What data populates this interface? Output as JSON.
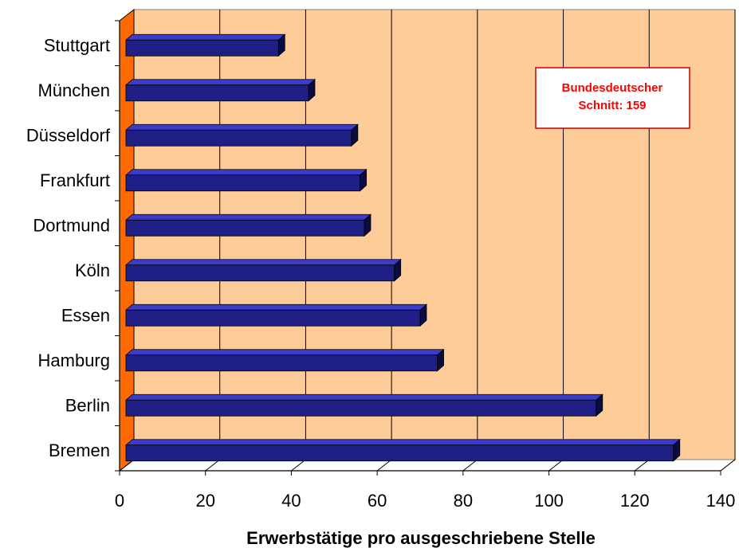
{
  "chart_data": {
    "type": "bar",
    "orientation": "horizontal",
    "categories": [
      "Bremen",
      "Berlin",
      "Hamburg",
      "Essen",
      "Köln",
      "Dortmund",
      "Frankfurt",
      "Düsseldorf",
      "München",
      "Stuttgart"
    ],
    "values": [
      129,
      111,
      74,
      70,
      64,
      57,
      56,
      54,
      44,
      37
    ],
    "xlabel": "Erwerbstätige pro ausgeschriebene Stelle",
    "ylabel": "",
    "xlim": [
      0,
      140
    ],
    "xticks": [
      "0",
      "20",
      "40",
      "60",
      "80",
      "100",
      "120",
      "140"
    ],
    "grid": true,
    "annotation": {
      "line1": "Bundesdeutscher",
      "line2": "Schnitt: 159"
    },
    "colors": {
      "bar_front": "#1f1f85",
      "bar_top": "#3c3ccc",
      "bar_side": "#0b0b3e",
      "plot_back": "#fdcc99",
      "left_wall": "#ff6a00",
      "annotation_text": "#ff0000",
      "annotation_border": "#cc0000"
    }
  }
}
